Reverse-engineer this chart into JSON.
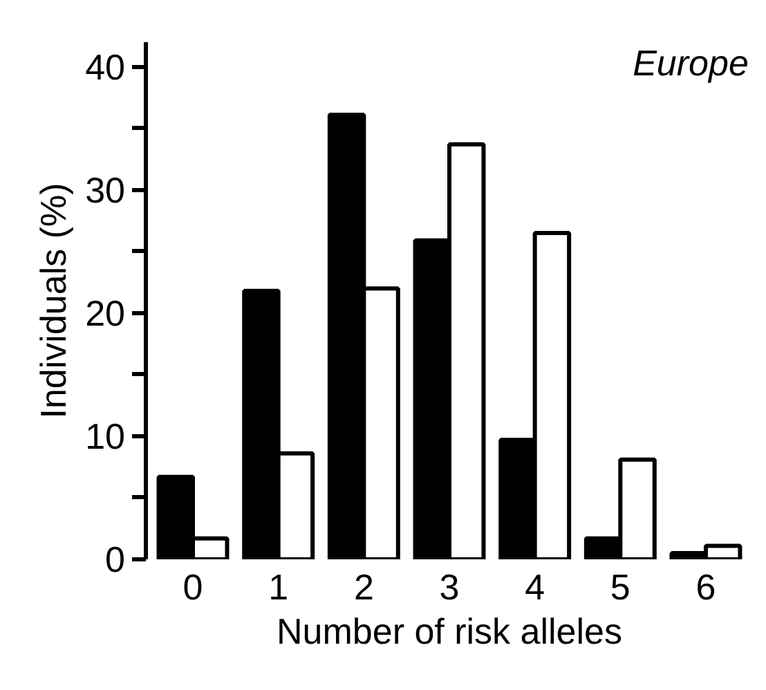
{
  "chart_data": {
    "type": "bar",
    "xlabel": "Number of risk alleles",
    "ylabel": "Individuals (%)",
    "annotations": [
      "Europe"
    ],
    "categories": [
      "0",
      "1",
      "2",
      "3",
      "4",
      "5",
      "6"
    ],
    "series": [
      {
        "color": "#000000",
        "values": [
          6.7,
          21.8,
          36.1,
          25.9,
          9.7,
          1.7,
          0.5
        ]
      },
      {
        "color": "#ffffff",
        "values": [
          1.7,
          8.6,
          22.0,
          33.7,
          26.5,
          8.1,
          1.1
        ]
      }
    ],
    "ylim": [
      0,
      42
    ],
    "yticks": [
      0,
      {
        "value": 5,
        "label": null
      },
      10,
      {
        "value": 15,
        "label": null
      },
      20,
      {
        "value": 25,
        "label": null
      },
      30,
      {
        "value": 35,
        "label": null
      },
      40
    ],
    "grid": false
  }
}
